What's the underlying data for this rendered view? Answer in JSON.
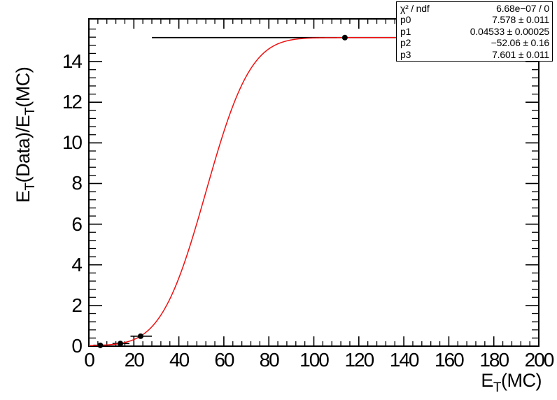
{
  "chart_data": {
    "type": "scatter",
    "title": "",
    "xlabel": "E_T(MC)",
    "ylabel": "E_T(Data)/E_T(MC)",
    "xlim": [
      0,
      200
    ],
    "ylim": [
      0,
      16.1
    ],
    "x_major_ticks": [
      0,
      20,
      40,
      60,
      80,
      100,
      120,
      140,
      160,
      180,
      200
    ],
    "y_major_ticks": [
      0,
      2,
      4,
      6,
      8,
      10,
      12,
      14
    ],
    "x_minor_step": 4,
    "y_minor_step": 0.4,
    "grid": false,
    "legend": "none",
    "marker_color": "#000000",
    "points": [
      {
        "x": 5.1,
        "y": 0.04,
        "xlow": 2,
        "xhigh": 8
      },
      {
        "x": 14.0,
        "y": 0.13,
        "xlow": 10.5,
        "xhigh": 18
      },
      {
        "x": 23.0,
        "y": 0.49,
        "xlow": 18.5,
        "xhigh": 28
      },
      {
        "x": 113.8,
        "y": 15.18,
        "xlow": 28,
        "xhigh": 140
      }
    ],
    "fit": {
      "function": "p3 + p0*erf(p1*(x + p2))",
      "range": [
        0,
        140
      ],
      "color": "#f01010",
      "params": {
        "p0": 7.578,
        "p1": 0.04533,
        "p2": -52.06,
        "p3": 7.601
      }
    }
  },
  "axis_titles": {
    "x": {
      "prefix": "E",
      "sub": "T",
      "suffix": "(MC)"
    },
    "y": {
      "prefix": "E",
      "sub": "T",
      "mid": "(Data)/E",
      "sub2": "T",
      "suffix": "(MC)"
    }
  },
  "stats_box": {
    "rows": [
      {
        "label": "χ² / ndf",
        "value": "6.68e−07 / 0"
      },
      {
        "label": "p0",
        "value": "7.578 ± 0.011"
      },
      {
        "label": "p1",
        "value": "0.04533 ± 0.00025"
      },
      {
        "label": "p2",
        "value": "−52.06 ± 0.16"
      },
      {
        "label": "p3",
        "value": "7.601 ± 0.011"
      }
    ]
  }
}
